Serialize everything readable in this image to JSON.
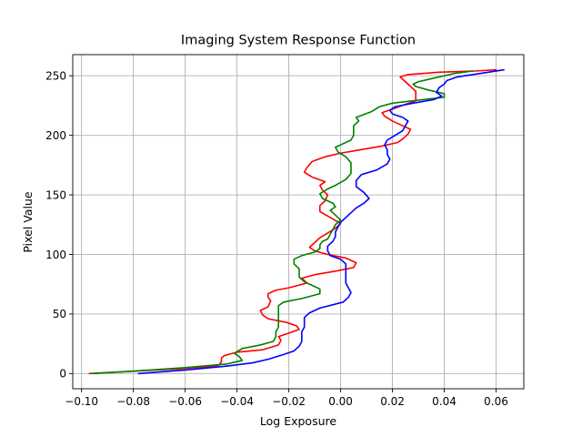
{
  "chart_data": {
    "type": "line",
    "title": "Imaging System Response Function",
    "xlabel": "Log Exposure",
    "ylabel": "Pixel Value",
    "xlim": [
      -0.1034,
      0.0707
    ],
    "ylim": [
      -12.75,
      267.75
    ],
    "x_ticks": [
      -0.1,
      -0.08,
      -0.06,
      -0.04,
      -0.02,
      0.0,
      0.02,
      0.04,
      0.06
    ],
    "x_tick_labels": [
      "−0.10",
      "−0.08",
      "−0.06",
      "−0.04",
      "−0.02",
      "0.00",
      "0.02",
      "0.04",
      "0.06"
    ],
    "y_ticks": [
      0,
      50,
      100,
      150,
      200,
      250
    ],
    "y_tick_labels": [
      "0",
      "50",
      "100",
      "150",
      "200",
      "250"
    ],
    "grid": true,
    "series": [
      {
        "color": "#ff0000",
        "points": [
          [
            -0.097,
            0
          ],
          [
            -0.08,
            2
          ],
          [
            -0.062,
            4
          ],
          [
            -0.05,
            6
          ],
          [
            -0.047,
            7
          ],
          [
            -0.046,
            10
          ],
          [
            -0.046,
            13
          ],
          [
            -0.045,
            15
          ],
          [
            -0.04,
            18
          ],
          [
            -0.03,
            20
          ],
          [
            -0.024,
            24
          ],
          [
            -0.023,
            28
          ],
          [
            -0.024,
            31
          ],
          [
            -0.02,
            34
          ],
          [
            -0.016,
            37
          ],
          [
            -0.017,
            40
          ],
          [
            -0.021,
            43
          ],
          [
            -0.028,
            46
          ],
          [
            -0.03,
            49
          ],
          [
            -0.031,
            53
          ],
          [
            -0.028,
            56
          ],
          [
            -0.027,
            61
          ],
          [
            -0.028,
            64
          ],
          [
            -0.028,
            67
          ],
          [
            -0.025,
            70
          ],
          [
            -0.02,
            72
          ],
          [
            -0.013,
            76
          ],
          [
            -0.015,
            80
          ],
          [
            -0.01,
            83
          ],
          [
            -0.002,
            86
          ],
          [
            0.005,
            89
          ],
          [
            0.006,
            93
          ],
          [
            0.002,
            97
          ],
          [
            -0.005,
            100
          ],
          [
            -0.01,
            103
          ],
          [
            -0.012,
            106
          ],
          [
            -0.01,
            110
          ],
          [
            -0.008,
            114
          ],
          [
            -0.005,
            118
          ],
          [
            -0.002,
            122
          ],
          [
            0.0,
            126
          ],
          [
            -0.004,
            131
          ],
          [
            -0.008,
            136
          ],
          [
            -0.008,
            141
          ],
          [
            -0.006,
            145
          ],
          [
            -0.005,
            150
          ],
          [
            -0.007,
            154
          ],
          [
            -0.008,
            158
          ],
          [
            -0.006,
            161
          ],
          [
            -0.011,
            165
          ],
          [
            -0.014,
            169
          ],
          [
            -0.013,
            173
          ],
          [
            -0.011,
            178
          ],
          [
            -0.006,
            182
          ],
          [
            0.0,
            185
          ],
          [
            0.008,
            188
          ],
          [
            0.016,
            191
          ],
          [
            0.022,
            194
          ],
          [
            0.024,
            197
          ],
          [
            0.026,
            201
          ],
          [
            0.027,
            205
          ],
          [
            0.024,
            208
          ],
          [
            0.02,
            212
          ],
          [
            0.017,
            216
          ],
          [
            0.016,
            219
          ],
          [
            0.02,
            222
          ],
          [
            0.025,
            226
          ],
          [
            0.029,
            229
          ],
          [
            0.029,
            233
          ],
          [
            0.029,
            237
          ],
          [
            0.027,
            241
          ],
          [
            0.025,
            245
          ],
          [
            0.023,
            249
          ],
          [
            0.026,
            251
          ],
          [
            0.038,
            253
          ],
          [
            0.052,
            254
          ],
          [
            0.06,
            255
          ]
        ]
      },
      {
        "color": "#008000",
        "points": [
          [
            -0.096,
            0
          ],
          [
            -0.08,
            2
          ],
          [
            -0.06,
            5
          ],
          [
            -0.044,
            8
          ],
          [
            -0.038,
            11
          ],
          [
            -0.039,
            14
          ],
          [
            -0.041,
            17
          ],
          [
            -0.038,
            21
          ],
          [
            -0.031,
            24
          ],
          [
            -0.026,
            27
          ],
          [
            -0.025,
            31
          ],
          [
            -0.025,
            35
          ],
          [
            -0.024,
            39
          ],
          [
            -0.024,
            43
          ],
          [
            -0.024,
            46
          ],
          [
            -0.024,
            50
          ],
          [
            -0.024,
            54
          ],
          [
            -0.024,
            57
          ],
          [
            -0.022,
            60
          ],
          [
            -0.015,
            63
          ],
          [
            -0.008,
            67
          ],
          [
            -0.008,
            71
          ],
          [
            -0.011,
            74
          ],
          [
            -0.014,
            77
          ],
          [
            -0.016,
            81
          ],
          [
            -0.016,
            85
          ],
          [
            -0.016,
            88
          ],
          [
            -0.018,
            92
          ],
          [
            -0.018,
            96
          ],
          [
            -0.015,
            99
          ],
          [
            -0.01,
            102
          ],
          [
            -0.008,
            105
          ],
          [
            -0.008,
            108
          ],
          [
            -0.007,
            111
          ],
          [
            -0.005,
            113
          ],
          [
            -0.004,
            117
          ],
          [
            -0.003,
            121
          ],
          [
            -0.002,
            125
          ],
          [
            0.0,
            129
          ],
          [
            -0.002,
            133
          ],
          [
            -0.004,
            137
          ],
          [
            -0.002,
            140
          ],
          [
            -0.003,
            143
          ],
          [
            -0.007,
            147
          ],
          [
            -0.008,
            151
          ],
          [
            -0.005,
            155
          ],
          [
            -0.002,
            158
          ],
          [
            0.002,
            163
          ],
          [
            0.004,
            168
          ],
          [
            0.004,
            172
          ],
          [
            0.004,
            177
          ],
          [
            0.002,
            182
          ],
          [
            -0.001,
            186
          ],
          [
            -0.002,
            190
          ],
          [
            0.001,
            193
          ],
          [
            0.004,
            196
          ],
          [
            0.005,
            200
          ],
          [
            0.005,
            204
          ],
          [
            0.005,
            208
          ],
          [
            0.007,
            212
          ],
          [
            0.006,
            215
          ],
          [
            0.012,
            220
          ],
          [
            0.015,
            224
          ],
          [
            0.02,
            227
          ],
          [
            0.028,
            229
          ],
          [
            0.04,
            232
          ],
          [
            0.04,
            235
          ],
          [
            0.034,
            238
          ],
          [
            0.029,
            241
          ],
          [
            0.028,
            243
          ],
          [
            0.03,
            245
          ],
          [
            0.036,
            248
          ],
          [
            0.04,
            250
          ],
          [
            0.044,
            252
          ],
          [
            0.051,
            254
          ]
        ]
      },
      {
        "color": "#0000ff",
        "points": [
          [
            -0.078,
            0
          ],
          [
            -0.06,
            3
          ],
          [
            -0.045,
            6
          ],
          [
            -0.034,
            9
          ],
          [
            -0.028,
            12
          ],
          [
            -0.022,
            16
          ],
          [
            -0.018,
            19
          ],
          [
            -0.016,
            23
          ],
          [
            -0.015,
            27
          ],
          [
            -0.015,
            31
          ],
          [
            -0.015,
            35
          ],
          [
            -0.014,
            39
          ],
          [
            -0.014,
            43
          ],
          [
            -0.014,
            47
          ],
          [
            -0.012,
            51
          ],
          [
            -0.008,
            55
          ],
          [
            0.001,
            60
          ],
          [
            0.003,
            64
          ],
          [
            0.004,
            68
          ],
          [
            0.003,
            72
          ],
          [
            0.002,
            76
          ],
          [
            0.002,
            80
          ],
          [
            0.002,
            84
          ],
          [
            0.002,
            88
          ],
          [
            0.002,
            92
          ],
          [
            0.0,
            96
          ],
          [
            -0.004,
            99
          ],
          [
            -0.005,
            103
          ],
          [
            -0.005,
            107
          ],
          [
            -0.003,
            111
          ],
          [
            -0.002,
            115
          ],
          [
            -0.002,
            119
          ],
          [
            -0.001,
            123
          ],
          [
            0.0,
            127
          ],
          [
            0.002,
            131
          ],
          [
            0.004,
            135
          ],
          [
            0.006,
            139
          ],
          [
            0.009,
            143
          ],
          [
            0.011,
            147
          ],
          [
            0.009,
            152
          ],
          [
            0.006,
            157
          ],
          [
            0.006,
            162
          ],
          [
            0.008,
            167
          ],
          [
            0.014,
            171
          ],
          [
            0.018,
            176
          ],
          [
            0.019,
            180
          ],
          [
            0.018,
            184
          ],
          [
            0.018,
            188
          ],
          [
            0.017,
            192
          ],
          [
            0.018,
            196
          ],
          [
            0.021,
            200
          ],
          [
            0.024,
            204
          ],
          [
            0.025,
            208
          ],
          [
            0.026,
            212
          ],
          [
            0.024,
            215
          ],
          [
            0.02,
            218
          ],
          [
            0.019,
            221
          ],
          [
            0.021,
            224
          ],
          [
            0.028,
            227
          ],
          [
            0.036,
            230
          ],
          [
            0.039,
            233
          ],
          [
            0.037,
            236
          ],
          [
            0.038,
            240
          ],
          [
            0.04,
            243
          ],
          [
            0.041,
            246
          ],
          [
            0.045,
            249
          ],
          [
            0.051,
            251
          ],
          [
            0.057,
            253
          ],
          [
            0.063,
            255
          ]
        ]
      }
    ]
  }
}
